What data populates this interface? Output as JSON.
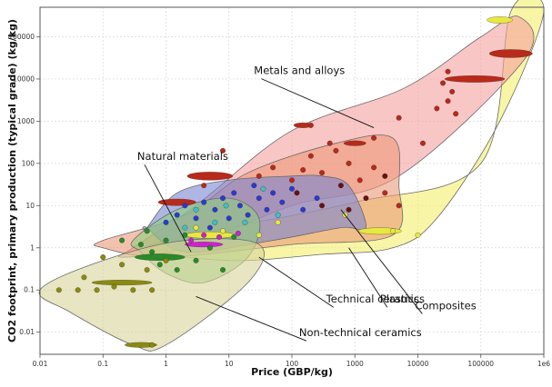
{
  "chart_data": {
    "type": "scatter",
    "title": "",
    "xlabel": "Price (GBP/kg)",
    "ylabel": "CO2 footprint, primary production (typical grade) (kg/kg)",
    "x_scale": "log",
    "y_scale": "log",
    "xlim": [
      0.01,
      1000000
    ],
    "ylim": [
      0.003,
      500000
    ],
    "x_ticks": [
      "0.01",
      "0.1",
      "1",
      "10",
      "100",
      "1000",
      "10000",
      "100000",
      "1e6"
    ],
    "y_ticks": [
      "0.01",
      "0.1",
      "1",
      "10",
      "100",
      "1000",
      "10000",
      "100000"
    ],
    "grid": true,
    "series": [
      {
        "name": "Composites",
        "fill": "#f3ef6a",
        "outline": [
          [
            0.5,
            1.0
          ],
          [
            10,
            3
          ],
          [
            1000,
            12
          ],
          [
            100000,
            100
          ],
          [
            300000,
            400000
          ],
          [
            1000000,
            400000
          ],
          [
            200000,
            1000
          ],
          [
            20000,
            5
          ],
          [
            4000,
            1
          ],
          [
            300,
            0.7
          ],
          [
            10,
            0.5
          ]
        ],
        "label": "Composites",
        "label_at": [
          9000,
          0.035
        ],
        "leader_to": [
          600,
          8
        ]
      },
      {
        "name": "Metals and alloys",
        "fill": "#f5a0a0",
        "outline": [
          [
            0.3,
            1.0
          ],
          [
            3,
            10
          ],
          [
            100,
            600
          ],
          [
            6000,
            6000
          ],
          [
            100000,
            100000
          ],
          [
            400000,
            300000
          ],
          [
            500000,
            30000
          ],
          [
            5000,
            50
          ],
          [
            100,
            10
          ],
          [
            2,
            1
          ],
          [
            0.2,
            0.6
          ]
        ],
        "label": "Metals and alloys",
        "label_at": [
          25,
          13000
        ],
        "leader_to": [
          2000,
          700
        ]
      },
      {
        "name": "Technical ceramics",
        "fill": "#eb9a78",
        "outline": [
          [
            0.1,
            1.5
          ],
          [
            2,
            6
          ],
          [
            20,
            60
          ],
          [
            500,
            300
          ],
          [
            4000,
            400
          ],
          [
            5000,
            30
          ],
          [
            4000,
            2
          ],
          [
            100,
            1.2
          ],
          [
            1,
            0.6
          ],
          [
            0.1,
            1.0
          ]
        ],
        "label": "Technical ceramics",
        "label_at": [
          350,
          0.05
        ],
        "leader_to": [
          30,
          0.6
        ]
      },
      {
        "name": "Plastics",
        "fill": "#7a86d0",
        "outline": [
          [
            0.5,
            3
          ],
          [
            1.5,
            20
          ],
          [
            10,
            40
          ],
          [
            100,
            50
          ],
          [
            300,
            50
          ],
          [
            800,
            30
          ],
          [
            1500,
            3
          ],
          [
            600,
            3
          ],
          [
            50,
            1.5
          ],
          [
            2,
            0.8
          ],
          [
            0.5,
            3
          ]
        ],
        "label": "Plastics",
        "label_at": [
          2500,
          0.05
        ],
        "leader_to": [
          800,
          1.0
        ]
      },
      {
        "name": "Natural materials",
        "fill": "#8fcf7e",
        "outline": [
          [
            0.3,
            1.5
          ],
          [
            1.5,
            8
          ],
          [
            10,
            15
          ],
          [
            30,
            5
          ],
          [
            20,
            0.6
          ],
          [
            4,
            0.15
          ],
          [
            1,
            0.25
          ],
          [
            0.4,
            0.8
          ]
        ],
        "label": "Natural materials",
        "label_at": [
          0.35,
          120
        ],
        "leader_to": [
          2.5,
          0.8
        ]
      },
      {
        "name": "Non-technical ceramics",
        "fill": "#d8d49a",
        "outline": [
          [
            0.01,
            0.1
          ],
          [
            0.1,
            0.5
          ],
          [
            2,
            1.5
          ],
          [
            30,
            1.2
          ],
          [
            20,
            0.15
          ],
          [
            1,
            0.005
          ],
          [
            0.3,
            0.005
          ],
          [
            0.03,
            0.03
          ]
        ],
        "label": "Non-technical ceramics",
        "label_at": [
          130,
          0.008
        ],
        "leader_to": [
          3,
          0.07
        ]
      }
    ],
    "points": [
      {
        "x": 0.02,
        "y": 0.1,
        "c": "#8a8a10"
      },
      {
        "x": 0.04,
        "y": 0.1,
        "c": "#8a8a10"
      },
      {
        "x": 0.08,
        "y": 0.1,
        "c": "#8a8a10"
      },
      {
        "x": 0.15,
        "y": 0.12,
        "c": "#8a8a10"
      },
      {
        "x": 0.3,
        "y": 0.1,
        "c": "#8a8a10"
      },
      {
        "x": 0.05,
        "y": 0.2,
        "c": "#8a8a10"
      },
      {
        "x": 0.1,
        "y": 0.6,
        "c": "#8a8a10"
      },
      {
        "x": 0.2,
        "y": 0.4,
        "c": "#8a8a10"
      },
      {
        "x": 0.5,
        "y": 0.3,
        "c": "#8a8a10"
      },
      {
        "x": 0.6,
        "y": 0.005,
        "c": "#8a8a10"
      },
      {
        "x": 0.6,
        "y": 0.1,
        "c": "#8a8a10"
      },
      {
        "x": 1,
        "y": 0.5,
        "c": "#8a8a10"
      },
      {
        "x": 0.2,
        "y": 1.5,
        "c": "#2a8a2a"
      },
      {
        "x": 0.4,
        "y": 1.2,
        "c": "#2a8a2a"
      },
      {
        "x": 0.6,
        "y": 0.8,
        "c": "#2a8a2a"
      },
      {
        "x": 0.8,
        "y": 0.4,
        "c": "#2a8a2a"
      },
      {
        "x": 1,
        "y": 1.5,
        "c": "#2a8a2a"
      },
      {
        "x": 1.5,
        "y": 0.3,
        "c": "#2a8a2a"
      },
      {
        "x": 2,
        "y": 2,
        "c": "#2a8a2a"
      },
      {
        "x": 3,
        "y": 0.5,
        "c": "#2a8a2a"
      },
      {
        "x": 5,
        "y": 1,
        "c": "#2a8a2a"
      },
      {
        "x": 8,
        "y": 0.3,
        "c": "#2a8a2a"
      },
      {
        "x": 12,
        "y": 1.8,
        "c": "#2a8a2a"
      },
      {
        "x": 0.5,
        "y": 2.5,
        "c": "#2a8a2a"
      },
      {
        "x": 1,
        "y": 4,
        "c": "#2a3ad0"
      },
      {
        "x": 1.5,
        "y": 6,
        "c": "#2a3ad0"
      },
      {
        "x": 2,
        "y": 10,
        "c": "#2a3ad0"
      },
      {
        "x": 3,
        "y": 5,
        "c": "#2a3ad0"
      },
      {
        "x": 4,
        "y": 12,
        "c": "#2a3ad0"
      },
      {
        "x": 5,
        "y": 3,
        "c": "#2a3ad0"
      },
      {
        "x": 6,
        "y": 8,
        "c": "#2a3ad0"
      },
      {
        "x": 8,
        "y": 15,
        "c": "#2a3ad0"
      },
      {
        "x": 10,
        "y": 5,
        "c": "#2a3ad0"
      },
      {
        "x": 12,
        "y": 20,
        "c": "#2a3ad0"
      },
      {
        "x": 15,
        "y": 10,
        "c": "#2a3ad0"
      },
      {
        "x": 20,
        "y": 6,
        "c": "#2a3ad0"
      },
      {
        "x": 25,
        "y": 30,
        "c": "#2a3ad0"
      },
      {
        "x": 30,
        "y": 15,
        "c": "#2a3ad0"
      },
      {
        "x": 40,
        "y": 8,
        "c": "#2a3ad0"
      },
      {
        "x": 50,
        "y": 20,
        "c": "#2a3ad0"
      },
      {
        "x": 70,
        "y": 12,
        "c": "#2a3ad0"
      },
      {
        "x": 100,
        "y": 25,
        "c": "#2a3ad0"
      },
      {
        "x": 150,
        "y": 8,
        "c": "#2a3ad0"
      },
      {
        "x": 250,
        "y": 15,
        "c": "#2a3ad0"
      },
      {
        "x": 2,
        "y": 3,
        "c": "#40c0c0"
      },
      {
        "x": 3,
        "y": 8,
        "c": "#40c0c0"
      },
      {
        "x": 6,
        "y": 4,
        "c": "#40c0c0"
      },
      {
        "x": 9,
        "y": 10,
        "c": "#40c0c0"
      },
      {
        "x": 18,
        "y": 4,
        "c": "#40c0c0"
      },
      {
        "x": 35,
        "y": 25,
        "c": "#40c0c0"
      },
      {
        "x": 60,
        "y": 6,
        "c": "#40c0c0"
      },
      {
        "x": 2.5,
        "y": 1.5,
        "c": "#d020d0"
      },
      {
        "x": 4,
        "y": 2,
        "c": "#d020d0"
      },
      {
        "x": 7,
        "y": 1.8,
        "c": "#d020d0"
      },
      {
        "x": 14,
        "y": 2.2,
        "c": "#d020d0"
      },
      {
        "x": 3,
        "y": 3,
        "c": "#e8e840"
      },
      {
        "x": 8,
        "y": 2.5,
        "c": "#e8e840"
      },
      {
        "x": 30,
        "y": 2,
        "c": "#e8e840"
      },
      {
        "x": 60,
        "y": 4,
        "c": "#e8e840"
      },
      {
        "x": 700,
        "y": 6,
        "c": "#e8e840"
      },
      {
        "x": 4000,
        "y": 2.5,
        "c": "#e8e840"
      },
      {
        "x": 10000,
        "y": 2,
        "c": "#e8e840"
      },
      {
        "x": 30,
        "y": 50,
        "c": "#b82a1a"
      },
      {
        "x": 50,
        "y": 80,
        "c": "#b82a1a"
      },
      {
        "x": 100,
        "y": 40,
        "c": "#b82a1a"
      },
      {
        "x": 150,
        "y": 70,
        "c": "#b82a1a"
      },
      {
        "x": 200,
        "y": 150,
        "c": "#b82a1a"
      },
      {
        "x": 300,
        "y": 60,
        "c": "#b82a1a"
      },
      {
        "x": 500,
        "y": 200,
        "c": "#b82a1a"
      },
      {
        "x": 800,
        "y": 100,
        "c": "#b82a1a"
      },
      {
        "x": 1200,
        "y": 40,
        "c": "#b82a1a"
      },
      {
        "x": 2000,
        "y": 80,
        "c": "#b82a1a"
      },
      {
        "x": 3000,
        "y": 20,
        "c": "#b82a1a"
      },
      {
        "x": 5000,
        "y": 10,
        "c": "#b82a1a"
      },
      {
        "x": 200,
        "y": 800,
        "c": "#b82a1a"
      },
      {
        "x": 400,
        "y": 300,
        "c": "#b82a1a"
      },
      {
        "x": 8,
        "y": 200,
        "c": "#b82a1a"
      },
      {
        "x": 4,
        "y": 30,
        "c": "#b82a1a"
      },
      {
        "x": 20000,
        "y": 2000,
        "c": "#b82a1a"
      },
      {
        "x": 30000,
        "y": 3000,
        "c": "#b82a1a"
      },
      {
        "x": 35000,
        "y": 5000,
        "c": "#b82a1a"
      },
      {
        "x": 25000,
        "y": 8000,
        "c": "#b82a1a"
      },
      {
        "x": 40000,
        "y": 1500,
        "c": "#b82a1a"
      },
      {
        "x": 30000,
        "y": 15000,
        "c": "#b82a1a"
      },
      {
        "x": 5000,
        "y": 1200,
        "c": "#b82a1a"
      },
      {
        "x": 12000,
        "y": 300,
        "c": "#b82a1a"
      },
      {
        "x": 2000,
        "y": 400,
        "c": "#b82a1a"
      },
      {
        "x": 600,
        "y": 30,
        "c": "#6a1010"
      },
      {
        "x": 1500,
        "y": 15,
        "c": "#6a1010"
      },
      {
        "x": 3000,
        "y": 50,
        "c": "#6a1010"
      },
      {
        "x": 300,
        "y": 10,
        "c": "#6a1010"
      },
      {
        "x": 120,
        "y": 20,
        "c": "#6a1010"
      },
      {
        "x": 800,
        "y": 8,
        "c": "#6a1010"
      }
    ],
    "ellipses": [
      {
        "x": 5,
        "y": 50,
        "rw": 2.3,
        "rh": 1.25,
        "c": "#b82a1a"
      },
      {
        "x": 150,
        "y": 800,
        "rw": 1.4,
        "rh": 1.15,
        "c": "#b82a1a"
      },
      {
        "x": 1000,
        "y": 300,
        "rw": 1.5,
        "rh": 1.15,
        "c": "#b82a1a"
      },
      {
        "x": 80000,
        "y": 10000,
        "rw": 3,
        "rh": 1.2,
        "c": "#b82a1a"
      },
      {
        "x": 300000,
        "y": 40000,
        "rw": 2.2,
        "rh": 1.25,
        "c": "#b82a1a"
      },
      {
        "x": 200000,
        "y": 250000,
        "rw": 1.6,
        "rh": 1.2,
        "c": "#e8e840"
      },
      {
        "x": 2500,
        "y": 2.5,
        "rw": 2.2,
        "rh": 1.2,
        "c": "#e8e840"
      },
      {
        "x": 0.4,
        "y": 0.005,
        "rw": 1.8,
        "rh": 1.15,
        "c": "#8a8a10"
      },
      {
        "x": 0.2,
        "y": 0.15,
        "rw": 3,
        "rh": 1.15,
        "c": "#8a8a10"
      },
      {
        "x": 0.8,
        "y": 0.6,
        "rw": 2.5,
        "rh": 1.2,
        "c": "#2a8a2a"
      },
      {
        "x": 5,
        "y": 2,
        "rw": 2.5,
        "rh": 1.2,
        "c": "#e8e840"
      },
      {
        "x": 4,
        "y": 1.2,
        "rw": 2,
        "rh": 1.15,
        "c": "#d020d0"
      },
      {
        "x": 1.5,
        "y": 12,
        "rw": 2,
        "rh": 1.2,
        "c": "#b82a1a"
      }
    ]
  }
}
